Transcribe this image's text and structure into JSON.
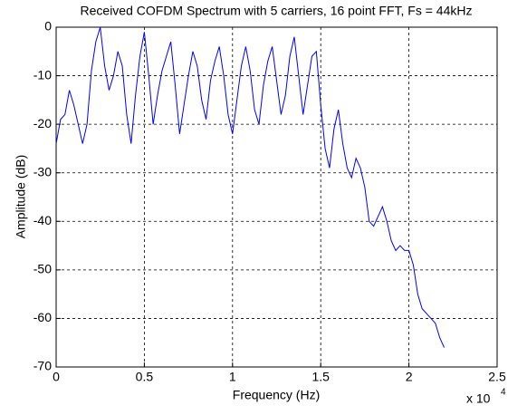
{
  "chart_data": {
    "type": "line",
    "title": "Received COFDM Spectrum with 5 carriers, 16 point FFT, Fs = 44kHz",
    "x_label": "Frequency (Hz)",
    "y_label": "Amplitude (dB)",
    "x_multiplier_base": "x 10",
    "x_multiplier_exponent": "4",
    "x": [
      0,
      250,
      500,
      750,
      1000,
      1250,
      1500,
      1750,
      2000,
      2250,
      2500,
      2750,
      3000,
      3250,
      3500,
      3750,
      4000,
      4250,
      4500,
      4750,
      5000,
      5250,
      5500,
      5750,
      6000,
      6250,
      6500,
      6750,
      7000,
      7250,
      7500,
      7750,
      8000,
      8250,
      8500,
      8750,
      9000,
      9250,
      9500,
      9750,
      10000,
      10250,
      10500,
      10750,
      11000,
      11250,
      11500,
      11750,
      12000,
      12250,
      12500,
      12750,
      13000,
      13250,
      13500,
      13750,
      14000,
      14250,
      14500,
      14750,
      15000,
      15250,
      15500,
      15750,
      16000,
      16250,
      16500,
      16750,
      17000,
      17250,
      17500,
      17750,
      18000,
      18250,
      18500,
      18750,
      19000,
      19250,
      19500,
      19750,
      20000,
      20250,
      20500,
      20750,
      21000,
      21250,
      21500,
      21750,
      22000
    ],
    "series": [
      {
        "color": "#0000ff",
        "values": [
          -24,
          -19,
          -18,
          -13,
          -16,
          -20,
          -24,
          -20,
          -9,
          -3,
          0,
          -8,
          -13,
          -10,
          -5,
          -8,
          -18,
          -24,
          -14,
          -6,
          -1,
          -10,
          -20,
          -14,
          -9,
          -6,
          -3,
          -12,
          -22,
          -16,
          -10,
          -5,
          -8,
          -15,
          -19,
          -11,
          -7,
          -4,
          -10,
          -18,
          -22,
          -15,
          -8,
          -4,
          -9,
          -17,
          -20,
          -12,
          -7,
          -4,
          -11,
          -18,
          -14,
          -6,
          -2,
          -10,
          -18,
          -12,
          -6,
          -5,
          -16,
          -25,
          -29,
          -21,
          -17,
          -24,
          -29,
          -31,
          -27,
          -29,
          -33,
          -40,
          -41,
          -39,
          -37,
          -40,
          -44,
          -46,
          -45,
          -46,
          -46,
          -49,
          -55,
          -58,
          -59,
          -60,
          -61,
          -64,
          -66
        ]
      }
    ],
    "xlim": [
      0,
      25000
    ],
    "xticks": [
      0,
      {
        "value": 5000,
        "label": "0.5"
      },
      {
        "value": 10000,
        "label": "1"
      },
      {
        "value": 15000,
        "label": "1.5"
      },
      {
        "value": 20000,
        "label": "2"
      },
      {
        "value": 25000,
        "label": "2.5"
      }
    ],
    "ylim": [
      -70,
      0
    ],
    "yticks": [
      -70,
      -60,
      -50,
      -40,
      -30,
      -20,
      -10,
      0
    ],
    "grid": true
  }
}
